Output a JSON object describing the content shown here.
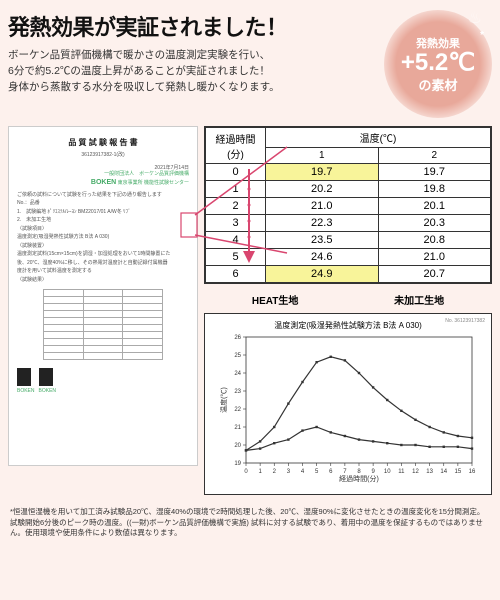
{
  "headline": {
    "title": "発熱効果が実証されました！",
    "body1": "ボーケン品質評価機構で暖かさの温度測定実験を行い、",
    "body2": "6分で約5.2℃の温度上昇があることが実証されました！",
    "body3": "身体から蒸散する水分を吸収して発熱し暖かくなります。"
  },
  "badge": {
    "line1": "発熱効果",
    "line2": "+5.2℃",
    "line3": "の素材",
    "asterisk": "*"
  },
  "doc": {
    "title": "品 質 試 験 報 告 書",
    "number": "36123917382-1(改)",
    "date": "2021年7月14日",
    "org_line1": "一般財団法人　ボーケン品質評価機構",
    "org_line2": "東京事業所 機能性試験センター",
    "boken": "BOKEN",
    "intro": "ご依頼の試料について試験を行った結果を下記の通り報告します",
    "items": [
      "No.：品番",
      "1.　試験編地 ﾎﾟﾘｴｽﾃﾙ/ﾚｰﾖﾝ BM22017/01 A/W冬 ﾘﾌﾞ",
      "2.　未加工生地",
      "〈試験項目〉",
      "温度測定(吸湿発熱性試験方法 B法 A 030)",
      "〈試験装置〉",
      "温度測定試料(15cm×15cm)を調湿・加湿処理をおいて1時間静置にた",
      "後、20℃、湿度40%に移し、その熱電対温度計と自動記録付属機器",
      "度計を用いて試料温度を測定する",
      "〈試験結果〉"
    ],
    "swatch_label": "BOKEN"
  },
  "table": {
    "head_time": "経過時間\n(分)",
    "head_temp": "温度(℃)",
    "col1": "1",
    "col2": "2",
    "rows": [
      {
        "t": "0",
        "v1": "19.7",
        "v2": "19.7",
        "hl1": true,
        "hl2": false
      },
      {
        "t": "1",
        "v1": "20.2",
        "v2": "19.8",
        "hl1": false,
        "hl2": false
      },
      {
        "t": "2",
        "v1": "21.0",
        "v2": "20.1",
        "hl1": false,
        "hl2": false
      },
      {
        "t": "3",
        "v1": "22.3",
        "v2": "20.3",
        "hl1": false,
        "hl2": false
      },
      {
        "t": "4",
        "v1": "23.5",
        "v2": "20.8",
        "hl1": false,
        "hl2": false
      },
      {
        "t": "5",
        "v1": "24.6",
        "v2": "21.0",
        "hl1": false,
        "hl2": false
      },
      {
        "t": "6",
        "v1": "24.9",
        "v2": "20.7",
        "hl1": true,
        "hl2": false
      }
    ],
    "label_heat": "HEAT生地",
    "label_raw": "未加工生地"
  },
  "chart": {
    "title": "温度測定(吸湿発熱性試験方法 B法 A 030)",
    "report_no": "No. 36123917382",
    "xlabel": "経過時間(分)",
    "ylabel": "温度(℃)",
    "xlim": [
      0,
      16
    ],
    "ylim": [
      19,
      26
    ],
    "xticks": [
      0,
      1,
      2,
      3,
      4,
      5,
      6,
      7,
      8,
      9,
      10,
      11,
      12,
      13,
      14,
      15,
      16
    ],
    "yticks": [
      19,
      20,
      21,
      22,
      23,
      24,
      25,
      26
    ],
    "series": [
      {
        "name": "HEAT生地",
        "color": "#333333",
        "width": 1.2,
        "x": [
          0,
          1,
          2,
          3,
          4,
          5,
          6,
          7,
          8,
          9,
          10,
          11,
          12,
          13,
          14,
          15,
          16
        ],
        "y": [
          19.7,
          20.2,
          21.0,
          22.3,
          23.5,
          24.6,
          24.9,
          24.7,
          24.0,
          23.2,
          22.5,
          21.9,
          21.4,
          21.0,
          20.7,
          20.5,
          20.4
        ]
      },
      {
        "name": "未加工生地",
        "color": "#333333",
        "width": 1.2,
        "x": [
          0,
          1,
          2,
          3,
          4,
          5,
          6,
          7,
          8,
          9,
          10,
          11,
          12,
          13,
          14,
          15,
          16
        ],
        "y": [
          19.7,
          19.8,
          20.1,
          20.3,
          20.8,
          21.0,
          20.7,
          20.5,
          20.3,
          20.2,
          20.1,
          20.0,
          20.0,
          19.9,
          19.9,
          19.9,
          19.8
        ]
      }
    ],
    "background_color": "#ffffff",
    "axis_color": "#333333",
    "tick_fontsize": 6
  },
  "footnote": "*恒温恒湿機を用いて加工済み試験品20℃、湿度40%の環境で2時間処理した後、20℃、湿度90%に変化させたときの温度変化を15分間測定。試験開始6分後のピーク時の温度。((一財)ボーケン品質評価機構で実施) 試料に対する試験であり、着用中の温度を保証するものではありません。使用環境や使用条件により数値は異なります。",
  "colors": {
    "bg": "#fdf1ed",
    "badge": "#e8a89a",
    "highlight": "#f8f49a",
    "arrow": "#d9466f"
  }
}
